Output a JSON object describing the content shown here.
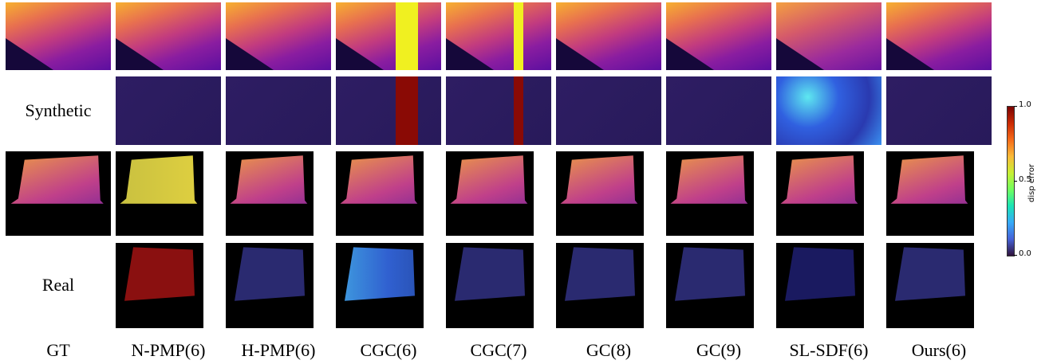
{
  "columns": [
    "GT",
    "N-PMP(6)",
    "H-PMP(6)",
    "CGC(6)",
    "CGC(7)",
    "GC(8)",
    "GC(9)",
    "SL-SDF(6)",
    "Ours(6)"
  ],
  "row_labels": [
    "Synthetic",
    "Real"
  ],
  "colorbar": {
    "label": "disp error",
    "lim": [
      0,
      1
    ],
    "ticks": [
      {
        "value": 1,
        "label": "1.0"
      },
      {
        "value": 0.5,
        "label": "0.5"
      },
      {
        "value": 0,
        "label": "0.0"
      }
    ]
  }
}
